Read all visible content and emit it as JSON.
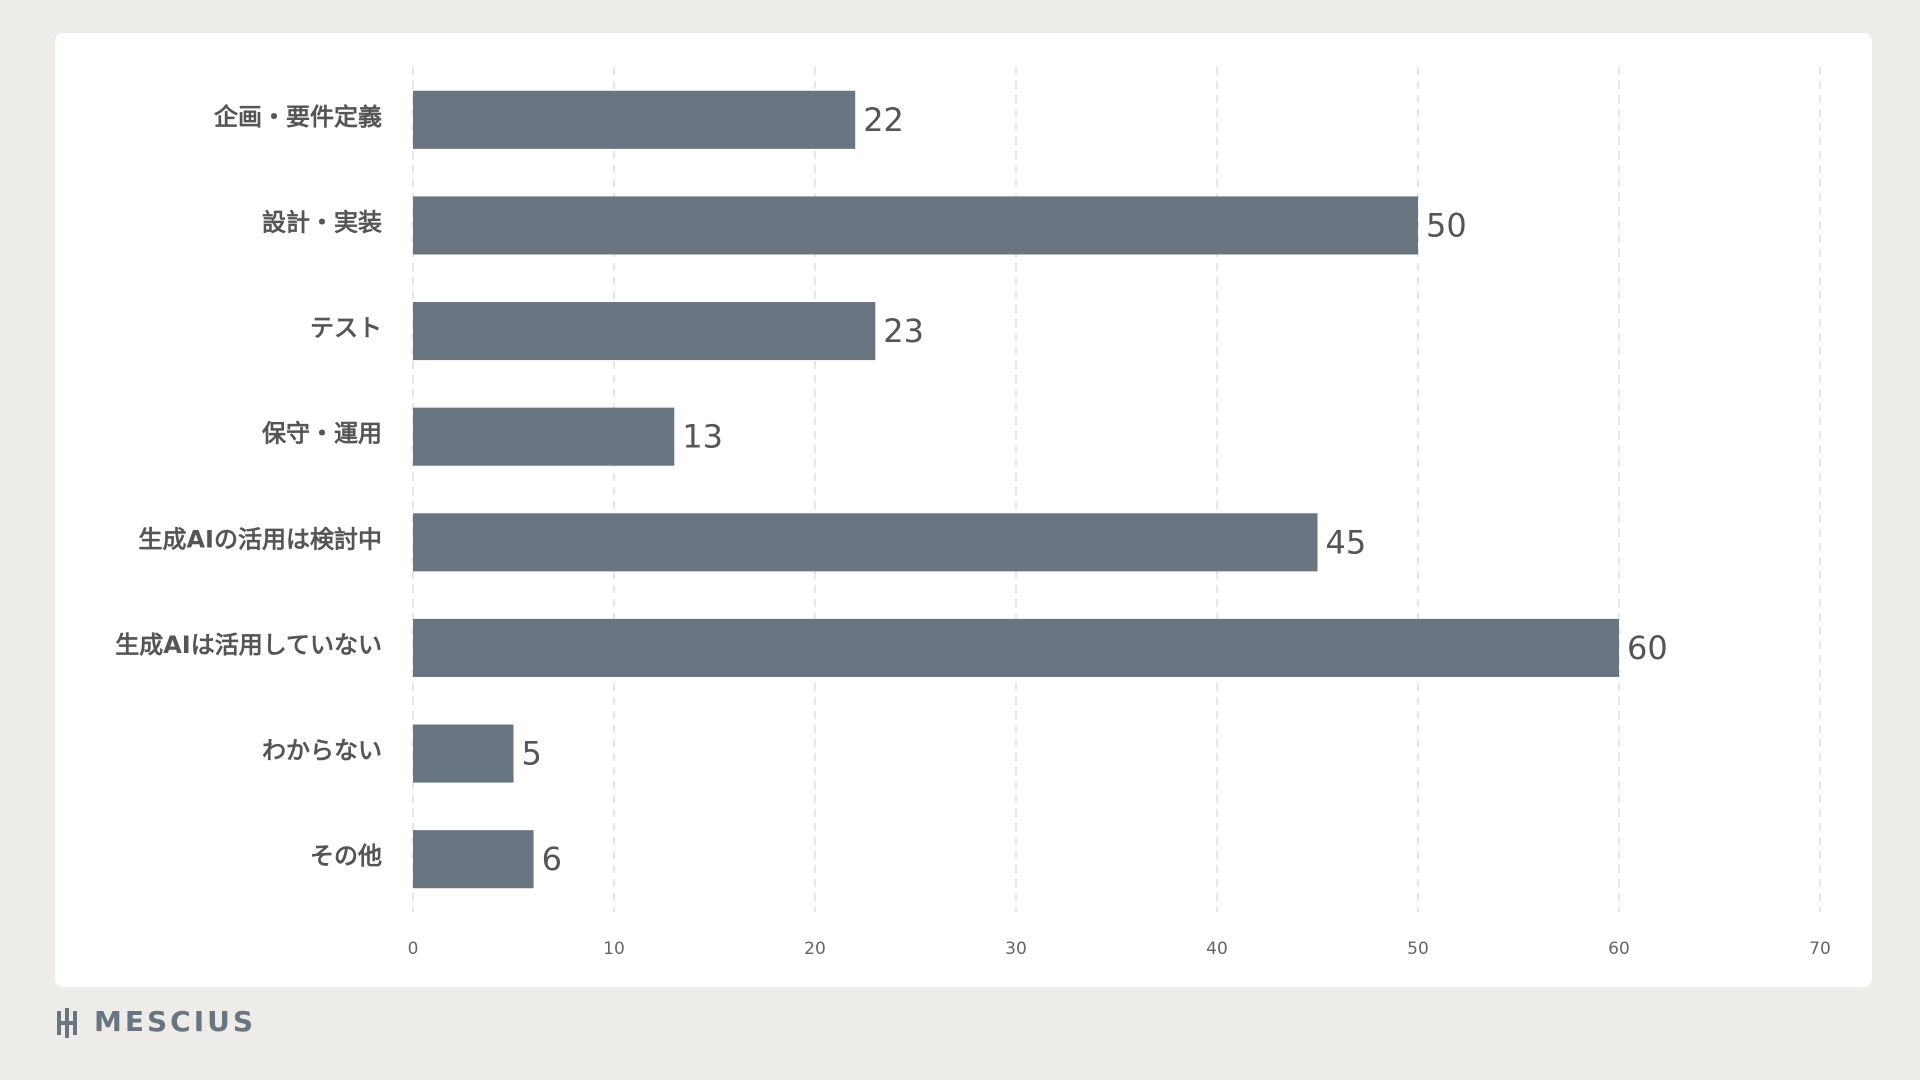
{
  "chart_data": {
    "type": "bar",
    "orientation": "horizontal",
    "categories": [
      "企画・要件定義",
      "設計・実装",
      "テスト",
      "保守・運用",
      "生成AIの活用は検討中",
      "生成AIは活用していない",
      "わからない",
      "その他"
    ],
    "values": [
      22,
      50,
      23,
      13,
      45,
      60,
      5,
      6
    ],
    "color": "#6a7582",
    "xlim": [
      0,
      70
    ],
    "xticks": [
      0,
      10,
      20,
      30,
      40,
      50,
      60,
      70
    ],
    "grid": true
  },
  "footer": {
    "logo": "MESCIUS"
  }
}
